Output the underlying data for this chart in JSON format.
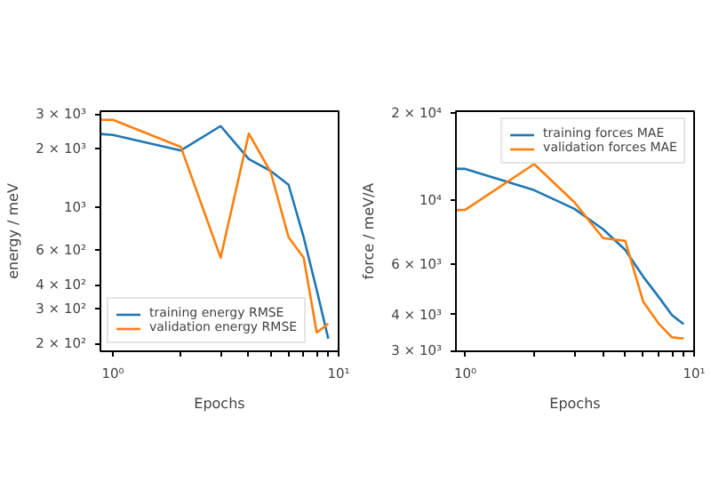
{
  "chart_data": [
    {
      "type": "line",
      "xlabel": "Epochs",
      "ylabel": "energy / meV",
      "log": "xy",
      "grid": false,
      "legend": "bottom left",
      "xlim": [
        0.88,
        10
      ],
      "ylim": [
        182,
        3100
      ],
      "xticks": [
        {
          "value": 1,
          "label": "10⁰"
        },
        {
          "value": 2,
          "label": null
        },
        {
          "value": 3,
          "label": null
        },
        {
          "value": 4,
          "label": null
        },
        {
          "value": 5,
          "label": null
        },
        {
          "value": 6,
          "label": null
        },
        {
          "value": 7,
          "label": null
        },
        {
          "value": 8,
          "label": null
        },
        {
          "value": 9,
          "label": null
        },
        {
          "value": 10,
          "label": "10¹"
        }
      ],
      "yticks": [
        {
          "value": 200,
          "label": "2 × 10²"
        },
        {
          "value": 300,
          "label": "3 × 10²"
        },
        {
          "value": 400,
          "label": "4 × 10²"
        },
        {
          "value": 600,
          "label": "6 × 10²"
        },
        {
          "value": 1000,
          "label": "10³"
        },
        {
          "value": 2000,
          "label": "2 × 10³"
        },
        {
          "value": 3000,
          "label": "3 × 10³"
        }
      ],
      "series": [
        {
          "name": "training energy RMSE",
          "color": "#1f77b4",
          "x": [
            0.88,
            1,
            2,
            3,
            4,
            5,
            6,
            7,
            8,
            9
          ],
          "values": [
            2370,
            2340,
            1950,
            2600,
            1760,
            1530,
            1300,
            700,
            375,
            211
          ]
        },
        {
          "name": "validation energy RMSE",
          "color": "#ff7f0e",
          "x": [
            0.88,
            1,
            2,
            3,
            4,
            5,
            6,
            7,
            8,
            9
          ],
          "values": [
            2800,
            2800,
            2030,
            550,
            2380,
            1510,
            700,
            550,
            227,
            252
          ]
        }
      ]
    },
    {
      "type": "line",
      "xlabel": "Epochs",
      "ylabel": "force / meV/A",
      "log": "xy",
      "grid": false,
      "legend": "top right",
      "xlim": [
        0.91,
        10
      ],
      "ylim": [
        2980,
        20300
      ],
      "xticks": [
        {
          "value": 1,
          "label": "10⁰"
        },
        {
          "value": 2,
          "label": null
        },
        {
          "value": 3,
          "label": null
        },
        {
          "value": 4,
          "label": null
        },
        {
          "value": 5,
          "label": null
        },
        {
          "value": 6,
          "label": null
        },
        {
          "value": 7,
          "label": null
        },
        {
          "value": 8,
          "label": null
        },
        {
          "value": 9,
          "label": null
        },
        {
          "value": 10,
          "label": "10¹"
        }
      ],
      "yticks": [
        {
          "value": 3000,
          "label": "3 × 10³"
        },
        {
          "value": 4000,
          "label": "4 × 10³"
        },
        {
          "value": 6000,
          "label": "6 × 10³"
        },
        {
          "value": 10000,
          "label": "10⁴"
        },
        {
          "value": 20000,
          "label": "2 × 10⁴"
        }
      ],
      "series": [
        {
          "name": "training forces MAE",
          "color": "#1f77b4",
          "x": [
            0.91,
            1,
            2,
            3,
            4,
            5,
            6,
            7,
            8,
            9
          ],
          "values": [
            12800,
            12800,
            10800,
            9300,
            7900,
            6700,
            5400,
            4600,
            3980,
            3700
          ]
        },
        {
          "name": "validation forces MAE",
          "color": "#ff7f0e",
          "x": [
            0.91,
            1,
            2,
            3,
            4,
            5,
            6,
            7,
            8,
            9
          ],
          "values": [
            9200,
            9230,
            13300,
            9800,
            7360,
            7200,
            4420,
            3720,
            3330,
            3300
          ]
        }
      ]
    }
  ]
}
